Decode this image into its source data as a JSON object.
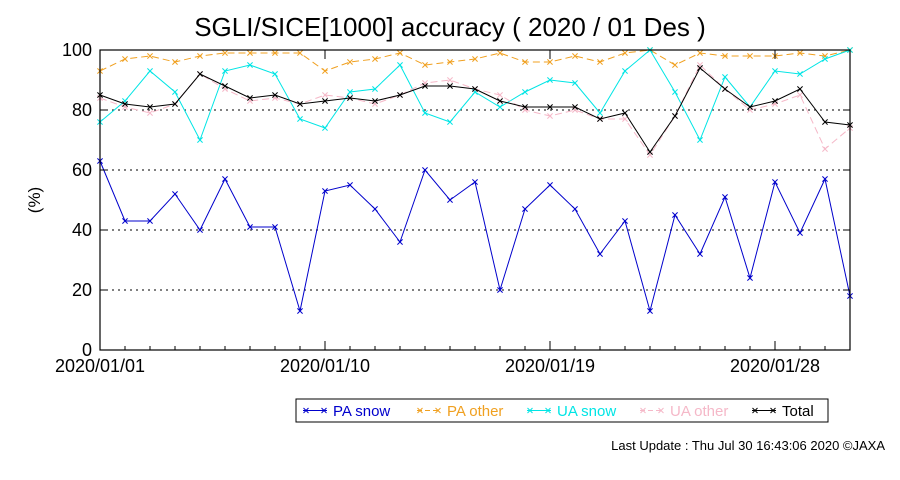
{
  "chart_data": {
    "type": "line",
    "title": "SGLI/SICE[1000] accuracy ( 2020 / 01 Des )",
    "ylabel": "(%)",
    "xlabel": "",
    "ylim": [
      0,
      100
    ],
    "yticks": [
      "0",
      "20",
      "40",
      "60",
      "80",
      "100"
    ],
    "xticks": [
      {
        "label": "2020/01/01",
        "day": 1
      },
      {
        "label": "2020/01/10",
        "day": 10
      },
      {
        "label": "2020/01/19",
        "day": 19
      },
      {
        "label": "2020/01/28",
        "day": 28
      }
    ],
    "xlim": [
      1,
      31
    ],
    "x": [
      1,
      2,
      3,
      4,
      5,
      6,
      7,
      8,
      9,
      10,
      11,
      12,
      13,
      14,
      15,
      16,
      17,
      18,
      19,
      20,
      21,
      22,
      23,
      24,
      25,
      26,
      27,
      28,
      29,
      30,
      31
    ],
    "grid": "horizontal dotted",
    "legend_position": "bottom",
    "series": [
      {
        "name": "PA snow",
        "color": "#0000cc",
        "dash": "solid",
        "values": [
          63,
          43,
          43,
          52,
          40,
          57,
          41,
          41,
          13,
          53,
          55,
          47,
          36,
          60,
          50,
          56,
          20,
          47,
          55,
          47,
          32,
          43,
          13,
          45,
          32,
          51,
          24,
          56,
          39,
          57,
          18
        ]
      },
      {
        "name": "PA other",
        "color": "#f0a020",
        "dash": "dashed",
        "values": [
          93,
          97,
          98,
          96,
          98,
          99,
          99,
          99,
          99,
          93,
          96,
          97,
          99,
          95,
          96,
          97,
          99,
          96,
          96,
          98,
          96,
          99,
          100,
          95,
          99,
          98,
          98,
          98,
          99,
          98,
          100
        ]
      },
      {
        "name": "UA snow",
        "color": "#00e5e5",
        "dash": "solid",
        "values": [
          76,
          83,
          93,
          86,
          70,
          93,
          95,
          92,
          77,
          74,
          86,
          87,
          95,
          79,
          76,
          86,
          81,
          86,
          90,
          89,
          79,
          93,
          100,
          86,
          70,
          91,
          81,
          93,
          92,
          97,
          100
        ]
      },
      {
        "name": "UA other",
        "color": "#f5b8c8",
        "dash": "dashed",
        "values": [
          84,
          81,
          79,
          82,
          92,
          87,
          83,
          84,
          82,
          85,
          84,
          82,
          85,
          89,
          90,
          87,
          85,
          80,
          78,
          80,
          77,
          77,
          65,
          78,
          95,
          87,
          80,
          82,
          85,
          67,
          74
        ]
      },
      {
        "name": "Total",
        "color": "#000000",
        "dash": "solid",
        "values": [
          85,
          82,
          81,
          82,
          92,
          88,
          84,
          85,
          82,
          83,
          84,
          83,
          85,
          88,
          88,
          87,
          83,
          81,
          81,
          81,
          77,
          79,
          66,
          78,
          94,
          87,
          81,
          83,
          87,
          76,
          75
        ]
      }
    ]
  },
  "footer": {
    "last_update": "Last Update : Thu Jul 30 16:43:06 2020 ©JAXA"
  }
}
